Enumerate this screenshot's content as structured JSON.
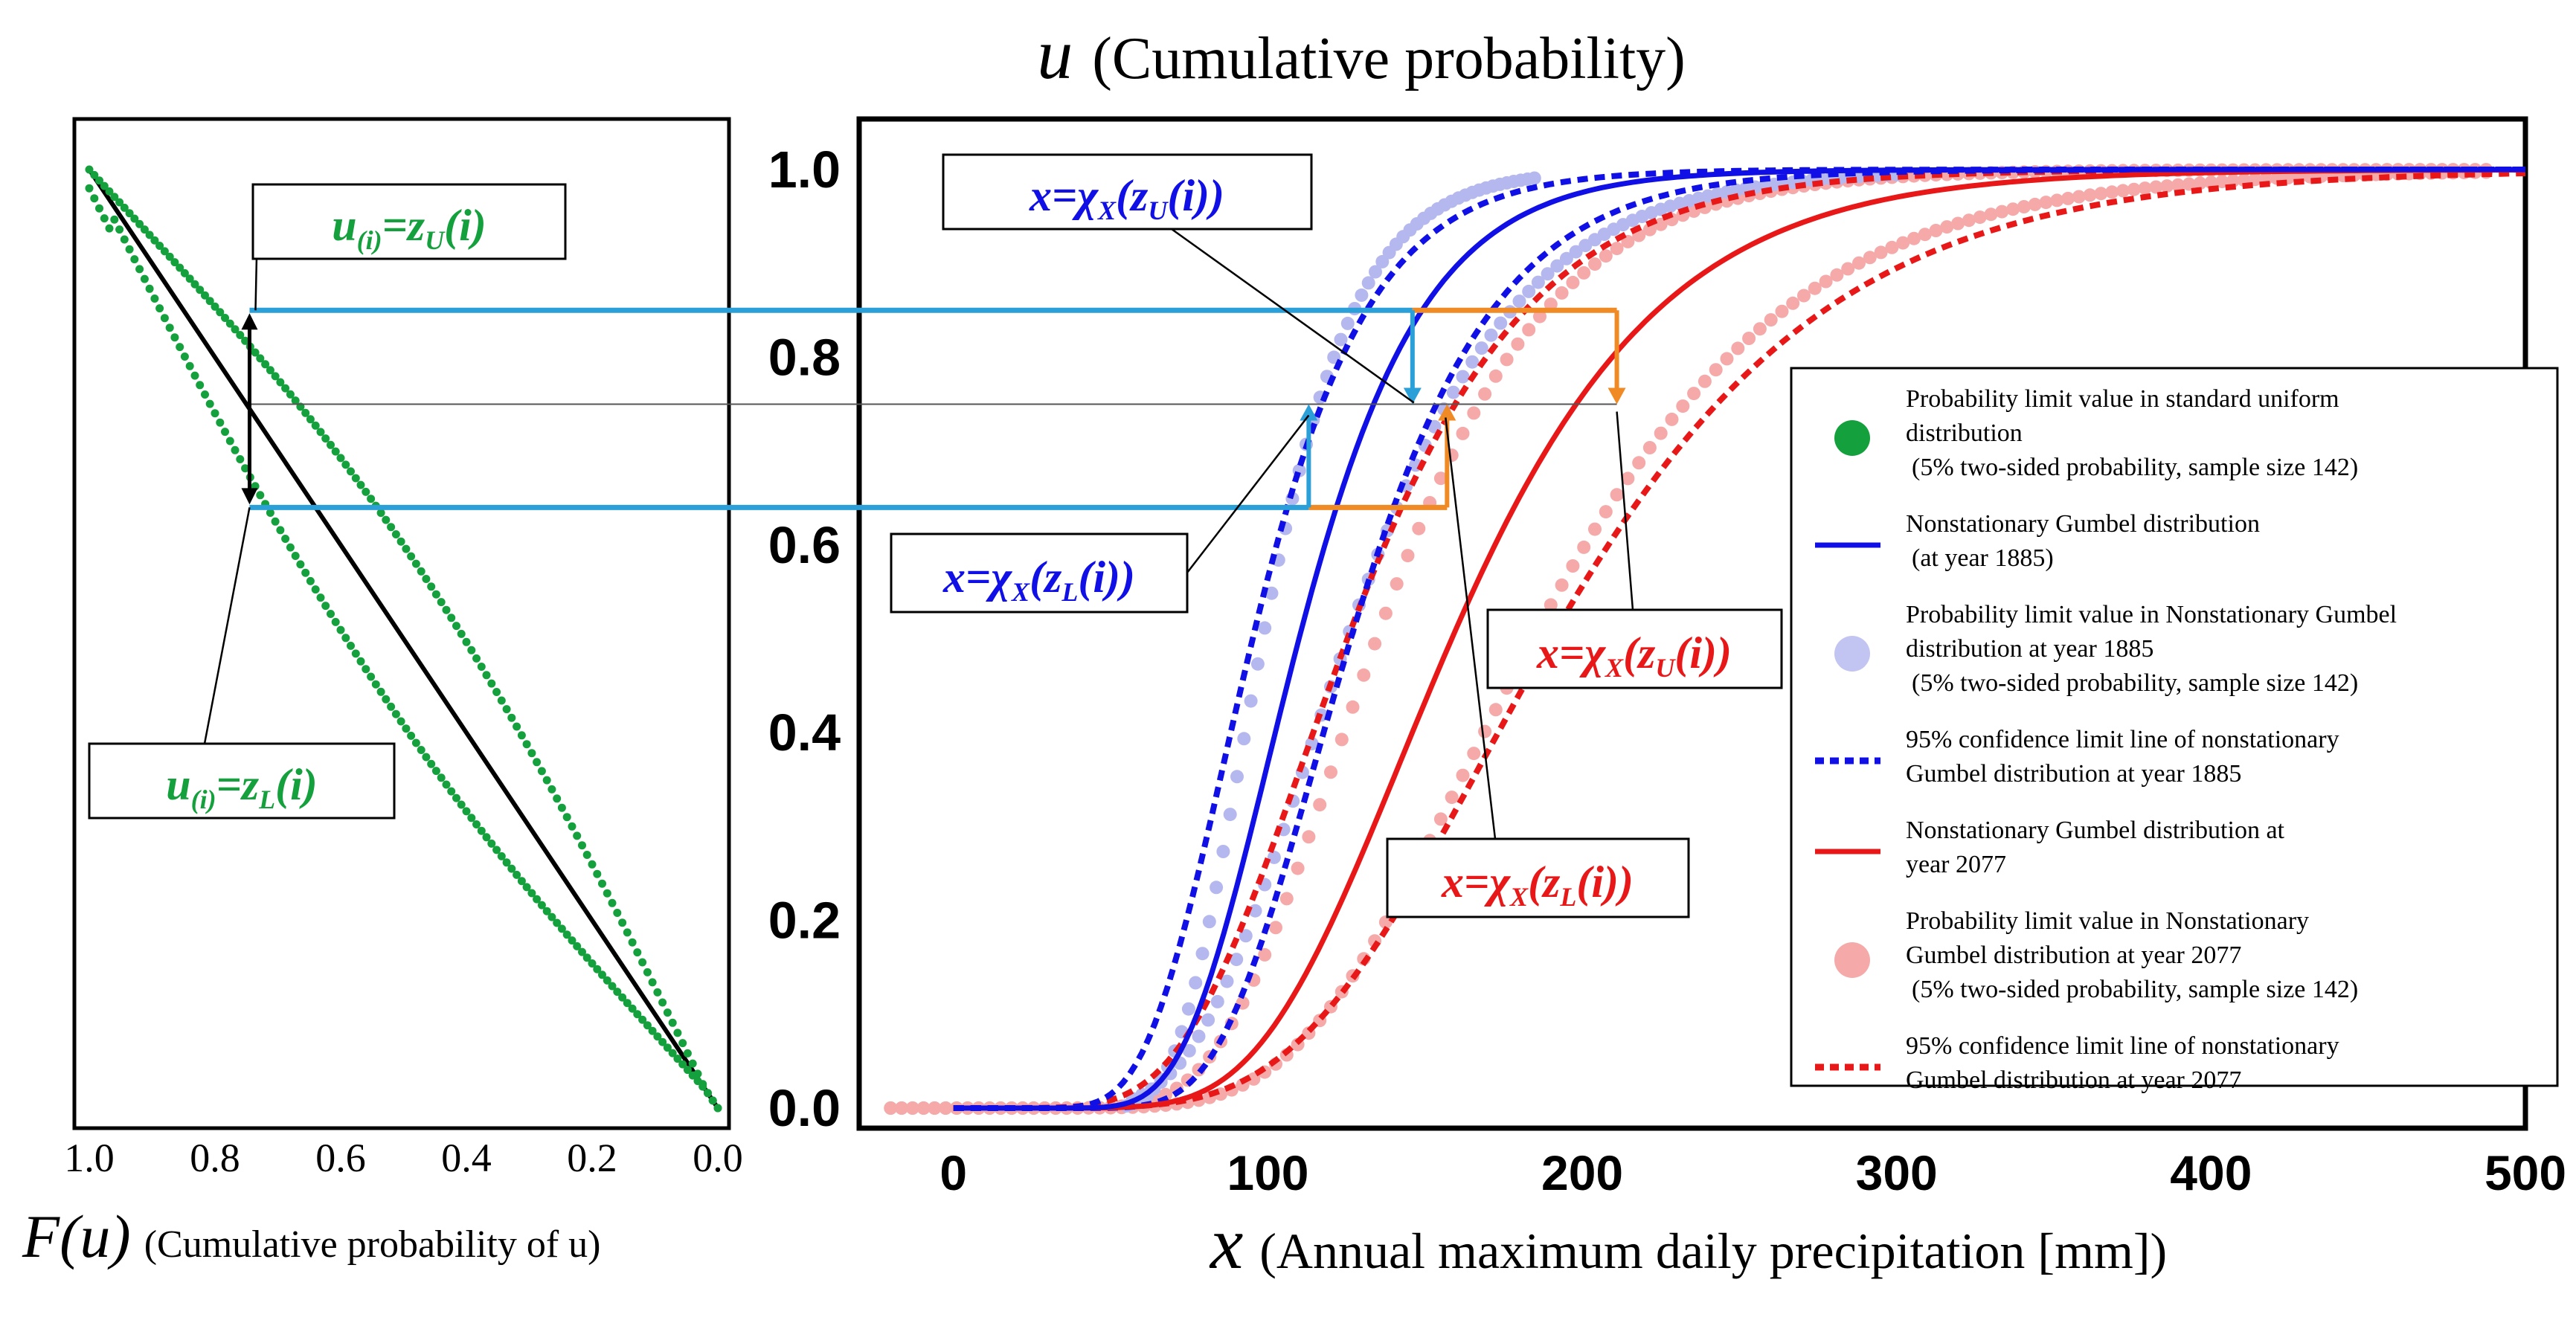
{
  "chart_data": [
    {
      "type": "line",
      "panel": "left",
      "title": "",
      "xlabel_symbol": "F(u)",
      "xlabel_text": "(Cumulative probability of u)",
      "xlim": [
        1.0,
        0.0
      ],
      "ylim": [
        0.0,
        1.0
      ],
      "x_ticks": [
        "1.0",
        "0.8",
        "0.6",
        "0.4",
        "0.2",
        "0.0"
      ],
      "series": [
        {
          "name": "F(u) = 1 - u",
          "color": "#000000",
          "style": "solid"
        },
        {
          "name": "Upper probability limit z_U(i)",
          "color": "#14a03c",
          "style": "dots"
        },
        {
          "name": "Lower probability limit z_L(i)",
          "color": "#14a03c",
          "style": "dots"
        }
      ],
      "annotations": {
        "u_upper": "u(i)=zU(i)",
        "u_lower": "u(i)=zL(i)",
        "u_upper_parts": {
          "u": "u",
          "sub": "(i)",
          "eq": "=z",
          "var_sub": "U",
          "tail": "(i)"
        },
        "u_lower_parts": {
          "u": "u",
          "sub": "(i)",
          "eq": "=z",
          "var_sub": "L",
          "tail": "(i)"
        },
        "f_at_marker": 0.745,
        "u_upper_value": 0.85,
        "u_lower_value": 0.64,
        "u_mid_value": 0.75
      }
    },
    {
      "type": "line",
      "panel": "right",
      "title": "u (Cumulative probability)",
      "title_symbol": "u",
      "title_text": "(Cumulative probability)",
      "xlabel": "x (Annual maximum daily precipitation [mm])",
      "xlabel_symbol": "x",
      "xlabel_text": "(Annual maximum daily precipitation [mm])",
      "ylabel": "u",
      "xlim": [
        -30,
        500
      ],
      "ylim": [
        0.0,
        1.0
      ],
      "x_ticks": [
        "0",
        "100",
        "200",
        "300",
        "400",
        "500"
      ],
      "x_tick_values": [
        0,
        100,
        200,
        300,
        400,
        500
      ],
      "y_ticks": [
        "0.0",
        "0.2",
        "0.4",
        "0.6",
        "0.8",
        "1.0"
      ],
      "y_tick_values": [
        0.0,
        0.2,
        0.4,
        0.6,
        0.8,
        1.0
      ],
      "series": [
        {
          "name": "Nonstationary Gumbel distribution (at year 1885)",
          "color": "#1010e6",
          "style": "solid",
          "mu": 100,
          "beta": 27
        },
        {
          "name": "95% confidence limit line of nonstationary Gumbel distribution at year 1885",
          "color": "#1010e6",
          "style": "dotted",
          "bounds": [
            {
              "mu": 86,
              "beta": 25
            },
            {
              "mu": 115,
              "beta": 31
            }
          ]
        },
        {
          "name": "Probability limit value in Nonstationary Gumbel distribution at year 1885",
          "color": "#b5b8ee",
          "style": "dots",
          "bounds": [
            {
              "mu": 91,
              "beta": 20
            },
            {
              "mu": 112,
              "beta": 36
            }
          ]
        },
        {
          "name": "Nonstationary Gumbel distribution at year 2077",
          "color": "#e81818",
          "style": "solid",
          "mu": 142,
          "beta": 45
        },
        {
          "name": "95% confidence limit line of nonstationary Gumbel distribution at year 2077",
          "color": "#e81818",
          "style": "dotted",
          "bounds": [
            {
              "mu": 111,
              "beta": 39
            },
            {
              "mu": 168,
              "beta": 60
            }
          ]
        },
        {
          "name": "Probability limit value in Nonstationary Gumbel distribution at year 2077",
          "color": "#f5a9a9",
          "style": "dots",
          "bounds": [
            {
              "mu": 121,
              "beta": 37
            },
            {
              "mu": 164,
              "beta": 55
            }
          ]
        }
      ],
      "annotations": {
        "blue_upper": {
          "text": "x=χX(zU(i))",
          "parts": {
            "x": "x",
            "eq": "=χ",
            "X": "X",
            "z": "(z",
            "sub": "U",
            "tail": "(i))"
          }
        },
        "blue_lower": {
          "text": "x=χX(zL(i))",
          "parts": {
            "x": "x",
            "eq": "=χ",
            "X": "X",
            "z": "(z",
            "sub": "L",
            "tail": "(i))"
          }
        },
        "red_upper": {
          "text": "x=χX(zU(i))",
          "parts": {
            "x": "x",
            "eq": "=χ",
            "X": "X",
            "z": "(z",
            "sub": "U",
            "tail": "(i))"
          }
        },
        "red_lower": {
          "text": "x=χX(zL(i))",
          "parts": {
            "x": "x",
            "eq": "=χ",
            "X": "X",
            "z": "(z",
            "sub": "L",
            "tail": "(i))"
          }
        },
        "blue_x_lower": 113,
        "blue_x_upper": 146,
        "red_x_lower": 157,
        "red_x_upper": 211
      },
      "legend": {
        "position": "right",
        "items": [
          {
            "marker": "dot",
            "color": "#14a03c",
            "lines": [
              "Probability limit value in standard uniform",
              "distribution",
              "(5% two-sided probability, sample size 142)"
            ]
          },
          {
            "marker": "line",
            "color": "#1010e6",
            "lines": [
              "Nonstationary Gumbel distribution",
              "(at year 1885)"
            ]
          },
          {
            "marker": "dot",
            "color": "#c2c4f2",
            "lines": [
              "Probability limit value in Nonstationary Gumbel",
              "distribution at year 1885",
              "(5% two-sided probability, sample size 142)"
            ]
          },
          {
            "marker": "dash",
            "color": "#1010e6",
            "lines": [
              "95% confidence limit line of nonstationary",
              "Gumbel distribution at year 1885"
            ]
          },
          {
            "marker": "line",
            "color": "#e81818",
            "lines": [
              "Nonstationary Gumbel distribution at",
              "year 2077"
            ]
          },
          {
            "marker": "dot",
            "color": "#f5a9a9",
            "lines": [
              "Probability limit value in Nonstationary",
              "Gumbel distribution at year 2077",
              "(5% two-sided probability, sample size 142)"
            ]
          },
          {
            "marker": "dash",
            "color": "#e81818",
            "lines": [
              "95% confidence limit line of nonstationary",
              "Gumbel distribution at year 2077"
            ]
          }
        ]
      }
    }
  ],
  "colors": {
    "green": "#14a03c",
    "blue": "#1010e6",
    "light_blue": "#b5b8ee",
    "red": "#e81818",
    "pink": "#f5a9a9",
    "connector_blue": "#2a9fd8",
    "connector_orange": "#f08a24"
  }
}
